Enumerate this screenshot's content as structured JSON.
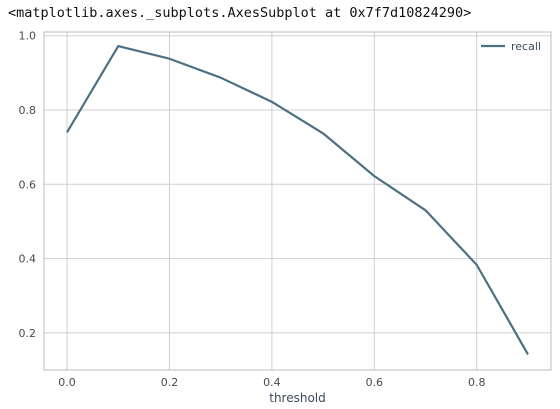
{
  "output": {
    "repr_text": "<matplotlib.axes._subplots.AxesSubplot at 0x7f7d10824290>"
  },
  "colors": {
    "line": "#4e7083",
    "grid": "#cfcfcf",
    "frame": "#bdbdbd"
  },
  "chart_data": {
    "type": "line",
    "xlabel": "threshold",
    "ylabel": "",
    "x": [
      0.0,
      0.1,
      0.2,
      0.3,
      0.4,
      0.5,
      0.6,
      0.7,
      0.8,
      0.9
    ],
    "series": [
      {
        "name": "recall",
        "values": [
          0.74,
          0.972,
          0.938,
          0.887,
          0.822,
          0.737,
          0.622,
          0.53,
          0.383,
          0.142
        ]
      }
    ],
    "xlim": [
      -0.045,
      0.945
    ],
    "ylim": [
      0.1,
      1.01
    ],
    "xticks": [
      0.0,
      0.2,
      0.4,
      0.6,
      0.8
    ],
    "xtick_labels": [
      "0.0",
      "0.2",
      "0.4",
      "0.6",
      "0.8"
    ],
    "yticks": [
      0.2,
      0.4,
      0.6,
      0.8,
      1.0
    ],
    "ytick_labels": [
      "0.2",
      "0.4",
      "0.6",
      "0.8",
      "1.0"
    ],
    "grid": true,
    "legend": "top-right"
  }
}
